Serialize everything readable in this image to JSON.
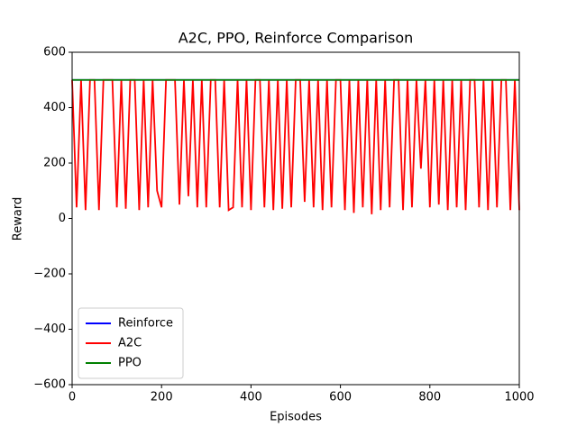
{
  "chart_data": {
    "type": "line",
    "title": "A2C, PPO, Reinforce Comparison",
    "xlabel": "Episodes",
    "ylabel": "Reward",
    "x": [
      0,
      10,
      20,
      30,
      40,
      50,
      60,
      70,
      80,
      90,
      100,
      110,
      120,
      130,
      140,
      150,
      160,
      170,
      180,
      190,
      200,
      210,
      220,
      230,
      240,
      250,
      260,
      270,
      280,
      290,
      300,
      310,
      320,
      330,
      340,
      350,
      360,
      370,
      380,
      390,
      400,
      410,
      420,
      430,
      440,
      450,
      460,
      470,
      480,
      490,
      500,
      510,
      520,
      530,
      540,
      550,
      560,
      570,
      580,
      590,
      600,
      610,
      620,
      630,
      640,
      650,
      660,
      670,
      680,
      690,
      700,
      710,
      720,
      730,
      740,
      750,
      760,
      770,
      780,
      790,
      800,
      810,
      820,
      830,
      840,
      850,
      860,
      870,
      880,
      890,
      900,
      910,
      920,
      930,
      940,
      950,
      960,
      970,
      980,
      990,
      1000
    ],
    "series": [
      {
        "name": "Reinforce",
        "color": "#0000ff",
        "values": [
          500,
          500,
          500,
          500,
          500,
          500,
          500,
          500,
          500,
          500,
          500,
          500,
          500,
          500,
          500,
          500,
          500,
          500,
          500,
          500,
          500,
          500,
          500,
          500,
          500,
          500,
          500,
          500,
          500,
          500,
          500,
          500,
          500,
          500,
          500,
          500,
          500,
          500,
          500,
          500,
          500,
          500,
          500,
          500,
          500,
          500,
          500,
          500,
          500,
          500,
          500,
          500,
          500,
          500,
          500,
          500,
          500,
          500,
          500,
          500,
          500,
          500,
          500,
          500,
          500,
          500,
          500,
          500,
          500,
          500,
          500,
          500,
          500,
          500,
          500,
          500,
          500,
          500,
          500,
          500,
          500,
          500,
          500,
          500,
          500,
          500,
          500,
          500,
          500,
          500,
          500,
          500,
          500,
          500,
          500,
          500,
          500,
          500,
          500,
          500,
          500
        ]
      },
      {
        "name": "A2C",
        "color": "#ff0000",
        "values": [
          500,
          40,
          500,
          30,
          500,
          500,
          30,
          500,
          500,
          500,
          40,
          500,
          35,
          500,
          500,
          30,
          500,
          40,
          500,
          100,
          40,
          500,
          500,
          500,
          50,
          500,
          80,
          500,
          40,
          500,
          40,
          500,
          500,
          40,
          500,
          30,
          40,
          500,
          40,
          500,
          30,
          500,
          500,
          40,
          500,
          30,
          500,
          35,
          500,
          40,
          500,
          500,
          60,
          500,
          40,
          500,
          30,
          500,
          40,
          500,
          500,
          30,
          500,
          20,
          500,
          40,
          500,
          15,
          500,
          30,
          500,
          40,
          500,
          500,
          30,
          500,
          40,
          500,
          180,
          500,
          40,
          500,
          50,
          500,
          30,
          500,
          40,
          500,
          30,
          500,
          500,
          40,
          500,
          30,
          500,
          40,
          500,
          500,
          30,
          500,
          30
        ]
      },
      {
        "name": "PPO",
        "color": "#008000",
        "values": [
          500,
          500,
          500,
          500,
          500,
          500,
          500,
          500,
          500,
          500,
          500,
          500,
          500,
          500,
          500,
          500,
          500,
          500,
          500,
          500,
          500,
          500,
          500,
          500,
          500,
          500,
          500,
          500,
          500,
          500,
          500,
          500,
          500,
          500,
          500,
          500,
          500,
          500,
          500,
          500,
          500,
          500,
          500,
          500,
          500,
          500,
          500,
          500,
          500,
          500,
          500,
          500,
          500,
          500,
          500,
          500,
          500,
          500,
          500,
          500,
          500,
          500,
          500,
          500,
          500,
          500,
          500,
          500,
          500,
          500,
          500,
          500,
          500,
          500,
          500,
          500,
          500,
          500,
          500,
          500,
          500,
          500,
          500,
          500,
          500,
          500,
          500,
          500,
          500,
          500,
          500,
          500,
          500,
          500,
          500,
          500,
          500,
          500,
          500,
          500,
          500
        ]
      }
    ],
    "xlim": [
      0,
      1000
    ],
    "ylim": [
      -600,
      600
    ],
    "xticks": [
      0,
      200,
      400,
      600,
      800,
      1000
    ],
    "yticks": [
      {
        "value": -600,
        "label": "−600"
      },
      {
        "value": -400,
        "label": "−400"
      },
      {
        "value": -200,
        "label": "−200"
      },
      0,
      200,
      400,
      600
    ],
    "legend": "lower left"
  }
}
